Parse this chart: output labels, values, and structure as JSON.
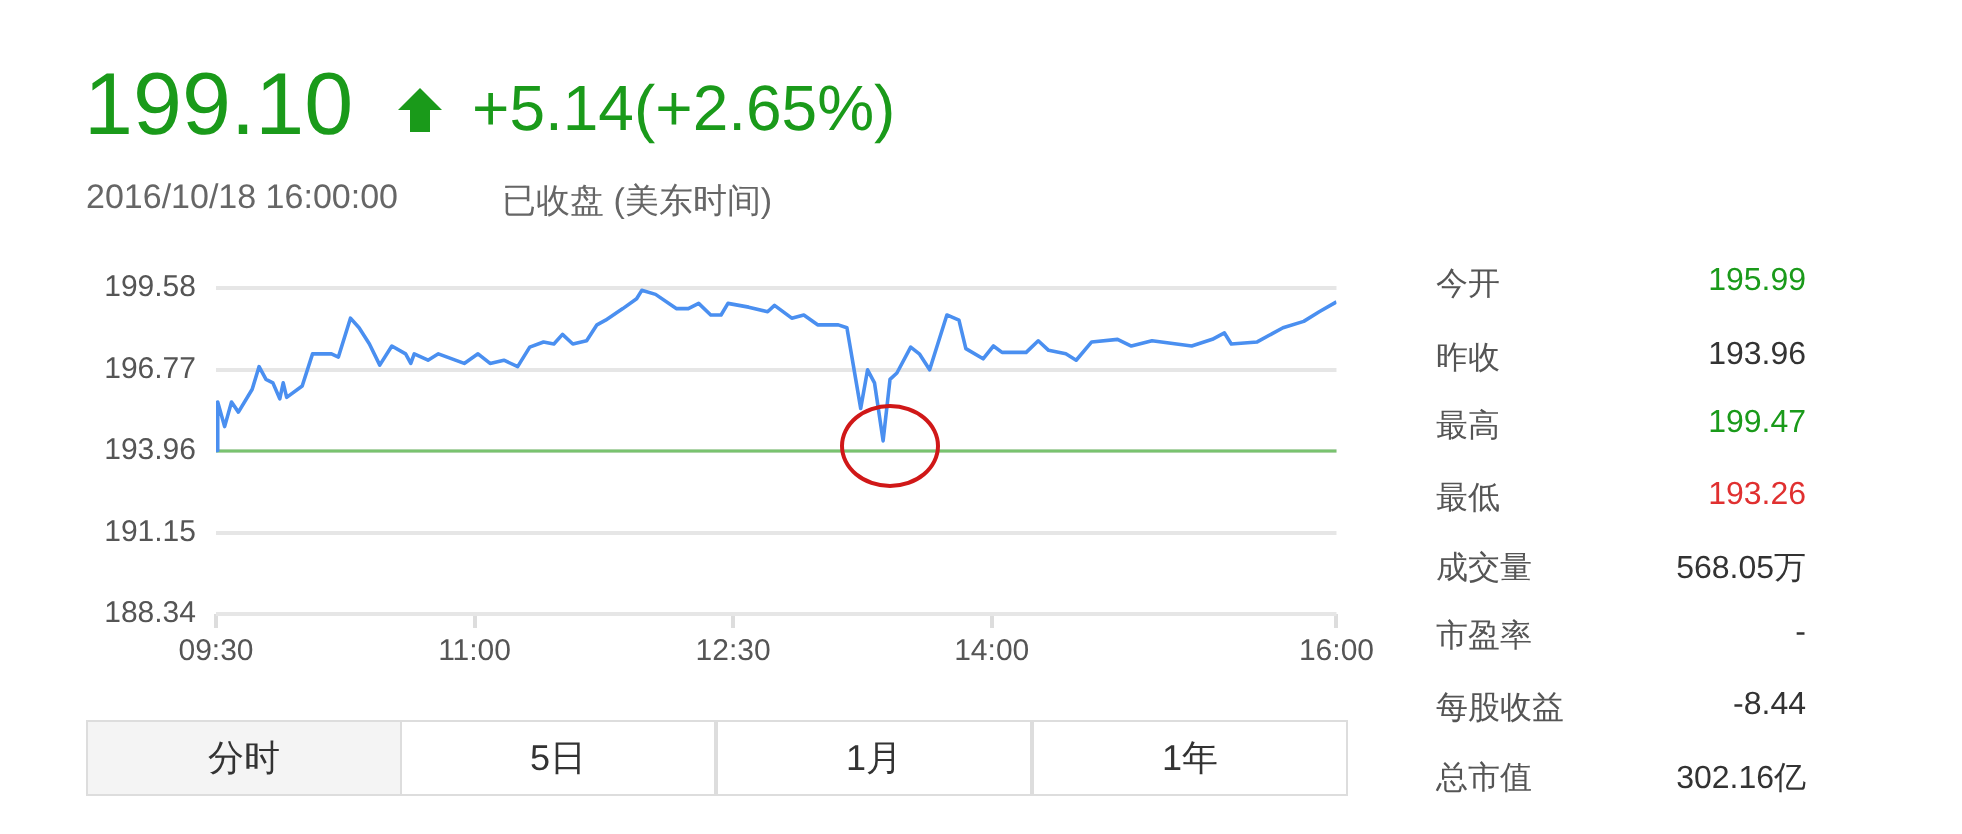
{
  "chart_data": {
    "type": "line",
    "xlim": [
      9.5,
      16
    ],
    "xticks": [
      {
        "value": 9.5,
        "label": "09:30"
      },
      {
        "value": 11,
        "label": "11:00"
      },
      {
        "value": 12.5,
        "label": "12:30"
      },
      {
        "value": 14,
        "label": "14:00"
      },
      {
        "value": 16,
        "label": "16:00"
      }
    ],
    "ylim": [
      188.34,
      199.58
    ],
    "yticks": [
      188.34,
      191.15,
      193.96,
      196.77,
      199.58
    ],
    "grid": "y",
    "legend": false,
    "marker": "none",
    "line_style": "solid",
    "ref_lines": [
      {
        "axis": "y",
        "value": 193.96,
        "color": "#79c36f"
      }
    ],
    "series": [
      {
        "color": "#4a8ff0",
        "x": [
          9.5,
          9.51,
          9.55,
          9.59,
          9.63,
          9.71,
          9.75,
          9.79,
          9.83,
          9.87,
          9.89,
          9.91,
          10.0,
          10.06,
          10.17,
          10.21,
          10.28,
          10.33,
          10.39,
          10.45,
          10.52,
          10.6,
          10.63,
          10.65,
          10.73,
          10.79,
          10.94,
          11.02,
          11.09,
          11.17,
          11.25,
          11.32,
          11.4,
          11.46,
          11.51,
          11.57,
          11.65,
          11.71,
          11.76,
          11.86,
          11.94,
          11.97,
          12.05,
          12.17,
          12.24,
          12.3,
          12.37,
          12.43,
          12.47,
          12.59,
          12.7,
          12.74,
          12.84,
          12.91,
          12.99,
          13.11,
          13.16,
          13.24,
          13.28,
          13.32,
          13.37,
          13.41,
          13.45,
          13.53,
          13.58,
          13.64,
          13.74,
          13.81,
          13.85,
          13.95,
          14.01,
          14.06,
          14.2,
          14.27,
          14.33,
          14.43,
          14.49,
          14.58,
          14.73,
          14.81,
          14.93,
          15.16,
          15.28,
          15.35,
          15.39,
          15.54,
          15.69,
          15.81,
          15.9,
          16.0
        ],
        "values": [
          193.98,
          195.65,
          194.8,
          195.65,
          195.3,
          196.09,
          196.87,
          196.43,
          196.31,
          195.76,
          196.31,
          195.81,
          196.2,
          197.31,
          197.31,
          197.2,
          198.54,
          198.21,
          197.65,
          196.92,
          197.58,
          197.31,
          196.98,
          197.31,
          197.09,
          197.31,
          196.98,
          197.31,
          196.98,
          197.09,
          196.87,
          197.54,
          197.72,
          197.65,
          197.98,
          197.65,
          197.76,
          198.31,
          198.47,
          198.87,
          199.21,
          199.5,
          199.36,
          198.87,
          198.87,
          199.05,
          198.65,
          198.65,
          199.05,
          198.92,
          198.76,
          198.98,
          198.54,
          198.65,
          198.31,
          198.31,
          198.21,
          195.43,
          196.76,
          196.31,
          194.31,
          196.43,
          196.65,
          197.54,
          197.31,
          196.76,
          198.65,
          198.47,
          197.49,
          197.14,
          197.58,
          197.36,
          197.36,
          197.76,
          197.43,
          197.31,
          197.09,
          197.72,
          197.81,
          197.58,
          197.76,
          197.58,
          197.81,
          198.03,
          197.65,
          197.72,
          198.21,
          198.43,
          198.76,
          199.1
        ]
      }
    ],
    "annotations": [
      "199.10",
      "+5.14(+2.65%)",
      "2016/10/18 16:00:00",
      "已收盘 (美东时间)",
      "今开",
      "195.99",
      "昨收",
      "193.96",
      "最高",
      "199.47",
      "最低",
      "193.26",
      "成交量",
      "568.05万",
      "市盈率",
      "-",
      "每股收益",
      "-8.44",
      "总市值",
      "302.16亿",
      "分时",
      "5日",
      "1月",
      "1年"
    ]
  }
}
